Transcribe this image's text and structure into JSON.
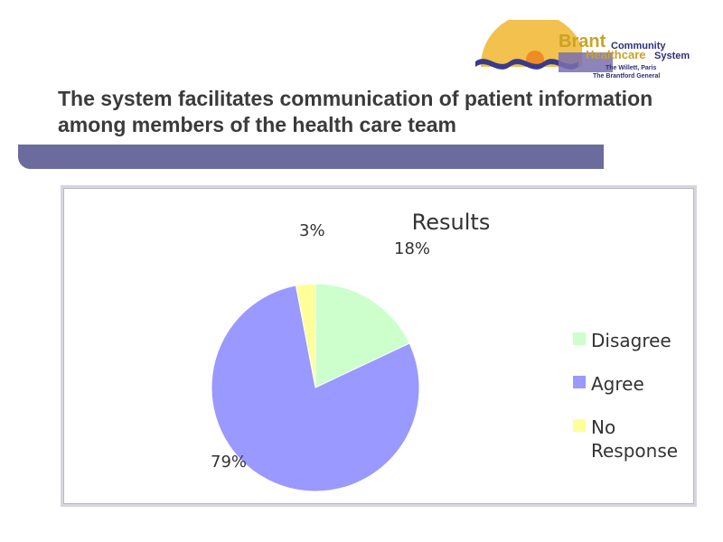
{
  "logo": {
    "brand_word": "Brant",
    "community_word": "Community",
    "healthcare_word": "Healthcare",
    "system_word": "System",
    "sub_line_1": "The Willett, Paris",
    "sub_line_2": "The Brantford General",
    "colors": {
      "sun": "#f2c14e",
      "wave": "#3a3a8c",
      "brand": "#c9a227",
      "text": "#2e2e7a"
    }
  },
  "slide": {
    "title": "The system facilitates communication of patient information among members of the health care team",
    "bar_color": "#6b6b9e"
  },
  "chart_data": {
    "type": "pie",
    "title": "Results",
    "slices": [
      {
        "label": "Disagree",
        "value": 18,
        "display": "18%",
        "color": "#ccffcc"
      },
      {
        "label": "Agree",
        "value": 79,
        "display": "79%",
        "color": "#9999ff"
      },
      {
        "label": "No Response",
        "value": 3,
        "display": "3%",
        "color": "#ffff99"
      }
    ],
    "legend": {
      "position": "right",
      "items": [
        {
          "lines": [
            "Disagree"
          ],
          "color": "#ccffcc"
        },
        {
          "lines": [
            "Agree"
          ],
          "color": "#9999ff"
        },
        {
          "lines": [
            "No",
            "Response"
          ],
          "color": "#ffff99"
        }
      ]
    }
  }
}
